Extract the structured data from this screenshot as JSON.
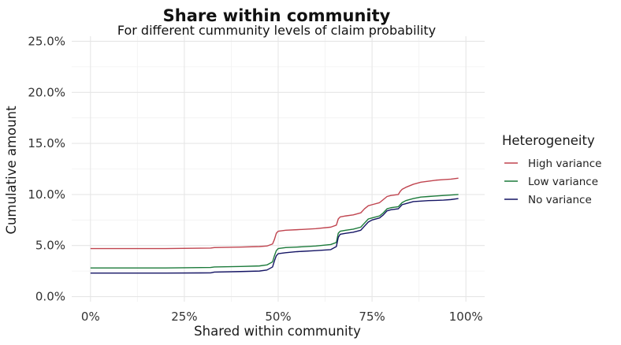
{
  "chart_data": {
    "type": "line",
    "title": "Share within community",
    "subtitle": "For different cummunity levels of claim probability",
    "xlabel": "Shared within community",
    "ylabel": "Cumulative amount",
    "xlim": [
      -0.05,
      1.05
    ],
    "ylim": [
      -0.005,
      0.255
    ],
    "x_ticks": [
      0,
      0.25,
      0.5,
      0.75,
      1.0
    ],
    "x_tick_labels": [
      "0%",
      "25%",
      "50%",
      "75%",
      "100%"
    ],
    "y_ticks": [
      0,
      0.05,
      0.1,
      0.15,
      0.2,
      0.25
    ],
    "y_tick_labels": [
      "0.0%",
      "5.0%",
      "10.0%",
      "15.0%",
      "20.0%",
      "25.0%"
    ],
    "grid": true,
    "legend": {
      "title": "Heterogeneity",
      "placement": "right"
    },
    "series": [
      {
        "name": "High variance",
        "color": "#c0444f",
        "points": [
          [
            0,
            0.047
          ],
          [
            0.1,
            0.047
          ],
          [
            0.2,
            0.047
          ],
          [
            0.32,
            0.0475
          ],
          [
            0.33,
            0.048
          ],
          [
            0.4,
            0.0485
          ],
          [
            0.45,
            0.049
          ],
          [
            0.47,
            0.0495
          ],
          [
            0.485,
            0.0515
          ],
          [
            0.49,
            0.056
          ],
          [
            0.495,
            0.062
          ],
          [
            0.5,
            0.064
          ],
          [
            0.52,
            0.065
          ],
          [
            0.55,
            0.0655
          ],
          [
            0.6,
            0.0665
          ],
          [
            0.64,
            0.068
          ],
          [
            0.655,
            0.07
          ],
          [
            0.66,
            0.076
          ],
          [
            0.665,
            0.078
          ],
          [
            0.68,
            0.079
          ],
          [
            0.7,
            0.08
          ],
          [
            0.72,
            0.082
          ],
          [
            0.73,
            0.086
          ],
          [
            0.74,
            0.089
          ],
          [
            0.75,
            0.09
          ],
          [
            0.77,
            0.092
          ],
          [
            0.78,
            0.095
          ],
          [
            0.79,
            0.098
          ],
          [
            0.8,
            0.099
          ],
          [
            0.81,
            0.0995
          ],
          [
            0.82,
            0.1
          ],
          [
            0.825,
            0.103
          ],
          [
            0.83,
            0.105
          ],
          [
            0.84,
            0.107
          ],
          [
            0.86,
            0.11
          ],
          [
            0.88,
            0.112
          ],
          [
            0.9,
            0.113
          ],
          [
            0.92,
            0.114
          ],
          [
            0.94,
            0.1145
          ],
          [
            0.96,
            0.115
          ],
          [
            0.98,
            0.116
          ]
        ]
      },
      {
        "name": "Low variance",
        "color": "#1b7a3a",
        "points": [
          [
            0,
            0.028
          ],
          [
            0.1,
            0.028
          ],
          [
            0.2,
            0.028
          ],
          [
            0.32,
            0.0285
          ],
          [
            0.33,
            0.029
          ],
          [
            0.4,
            0.0295
          ],
          [
            0.45,
            0.03
          ],
          [
            0.47,
            0.031
          ],
          [
            0.485,
            0.034
          ],
          [
            0.49,
            0.04
          ],
          [
            0.495,
            0.045
          ],
          [
            0.5,
            0.047
          ],
          [
            0.52,
            0.048
          ],
          [
            0.55,
            0.0485
          ],
          [
            0.6,
            0.0495
          ],
          [
            0.64,
            0.051
          ],
          [
            0.655,
            0.053
          ],
          [
            0.66,
            0.062
          ],
          [
            0.665,
            0.064
          ],
          [
            0.68,
            0.065
          ],
          [
            0.7,
            0.066
          ],
          [
            0.72,
            0.068
          ],
          [
            0.73,
            0.072
          ],
          [
            0.74,
            0.076
          ],
          [
            0.75,
            0.077
          ],
          [
            0.77,
            0.079
          ],
          [
            0.78,
            0.082
          ],
          [
            0.79,
            0.086
          ],
          [
            0.8,
            0.087
          ],
          [
            0.81,
            0.0875
          ],
          [
            0.82,
            0.088
          ],
          [
            0.825,
            0.09
          ],
          [
            0.83,
            0.092
          ],
          [
            0.84,
            0.094
          ],
          [
            0.86,
            0.096
          ],
          [
            0.88,
            0.0975
          ],
          [
            0.9,
            0.098
          ],
          [
            0.92,
            0.0985
          ],
          [
            0.94,
            0.099
          ],
          [
            0.96,
            0.0995
          ],
          [
            0.98,
            0.1
          ]
        ]
      },
      {
        "name": "No variance",
        "color": "#141464",
        "points": [
          [
            0,
            0.023
          ],
          [
            0.1,
            0.023
          ],
          [
            0.2,
            0.023
          ],
          [
            0.32,
            0.0232
          ],
          [
            0.33,
            0.024
          ],
          [
            0.4,
            0.0245
          ],
          [
            0.45,
            0.025
          ],
          [
            0.47,
            0.026
          ],
          [
            0.485,
            0.029
          ],
          [
            0.49,
            0.035
          ],
          [
            0.495,
            0.04
          ],
          [
            0.5,
            0.042
          ],
          [
            0.52,
            0.043
          ],
          [
            0.55,
            0.044
          ],
          [
            0.6,
            0.045
          ],
          [
            0.64,
            0.046
          ],
          [
            0.655,
            0.049
          ],
          [
            0.66,
            0.058
          ],
          [
            0.665,
            0.061
          ],
          [
            0.68,
            0.062
          ],
          [
            0.7,
            0.063
          ],
          [
            0.72,
            0.065
          ],
          [
            0.73,
            0.069
          ],
          [
            0.74,
            0.073
          ],
          [
            0.75,
            0.075
          ],
          [
            0.77,
            0.077
          ],
          [
            0.78,
            0.08
          ],
          [
            0.79,
            0.084
          ],
          [
            0.8,
            0.085
          ],
          [
            0.81,
            0.0855
          ],
          [
            0.82,
            0.086
          ],
          [
            0.825,
            0.088
          ],
          [
            0.83,
            0.09
          ],
          [
            0.84,
            0.091
          ],
          [
            0.86,
            0.093
          ],
          [
            0.88,
            0.0935
          ],
          [
            0.9,
            0.094
          ],
          [
            0.92,
            0.0942
          ],
          [
            0.94,
            0.0945
          ],
          [
            0.96,
            0.095
          ],
          [
            0.98,
            0.096
          ]
        ]
      }
    ]
  }
}
